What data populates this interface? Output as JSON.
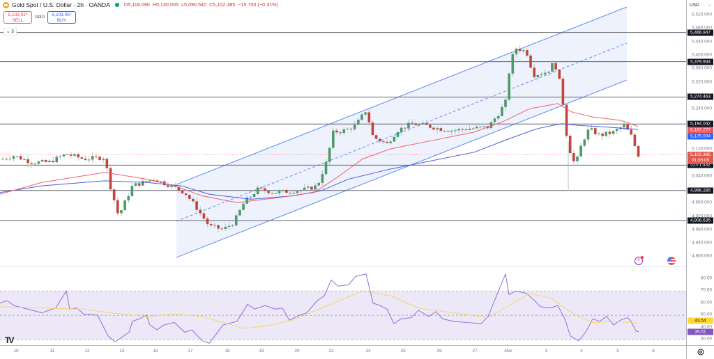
{
  "header": {
    "symbol_title": "Gold Spot / U.S. Dollar · 2h · OANDA",
    "ohlc": {
      "open": "O5,118.090",
      "high": "H5,130.005",
      "low": "L5,090.540",
      "close": "C5,102.385",
      "change": "−15.700 (−0.31%)"
    },
    "market_status_color": "#089981"
  },
  "trade": {
    "sell_price": "5,102.02⁰",
    "sell_label": "SELL",
    "spread": "103.0",
    "buy_price": "5,103.05⁰",
    "buy_label": "BUY"
  },
  "indicators_toggle": "⌄ 3",
  "price_axis": {
    "currency": "USD",
    "ticks": [
      "5,520.000",
      "5,480.000",
      "5,440.000",
      "5,400.000",
      "5,360.000",
      "5,320.000",
      "5,240.000",
      "5,160.000",
      "5,120.000",
      "5,040.000",
      "4,960.000",
      "4,920.000",
      "4,880.000",
      "4,840.000",
      "4,800.000"
    ],
    "tags": {
      "level_1": "5,466.947",
      "level_2": "5,379.934",
      "level_3": "5,274.463",
      "level_4": "5,194.042",
      "ma_fast": "5,187.277",
      "ma_slow": "5,175.004",
      "last_price": "5,102.385",
      "countdown": "01:05:05",
      "level_5": "5,071.432",
      "level_6": "4,996.285",
      "level_7": "4,906.635"
    }
  },
  "rsi_axis": {
    "ticks": [
      "80.00",
      "70.00",
      "60.00",
      "50.00",
      "40.00",
      "30.00"
    ],
    "rsi_ma_value": "43.54",
    "rsi_value": "36.51"
  },
  "time_axis": {
    "labels": [
      "10",
      "11",
      "12",
      "13",
      "15",
      "17",
      "18",
      "19",
      "20",
      "22",
      "24",
      "25",
      "26",
      "27",
      "Mar",
      "3",
      "4",
      "5",
      "6"
    ]
  },
  "colors": {
    "up": "#089981",
    "down": "#f23645",
    "ma_fast": "#f7525f",
    "ma_slow": "#2962ff",
    "channel": "#2962ff",
    "rsi": "#7e57c2",
    "rsi_ma": "#fdd835",
    "last_price": "#f23645"
  },
  "chart_data": {
    "type": "candlestick",
    "title": "Gold Spot / U.S. Dollar · 2h · OANDA",
    "xlabel": "",
    "ylabel": "USD",
    "ylim": [
      4780,
      5540
    ],
    "categories": [
      "10",
      "11",
      "12",
      "13",
      "15",
      "17",
      "18",
      "19",
      "20",
      "22",
      "24",
      "25",
      "26",
      "27",
      "Mar",
      "3",
      "4",
      "5",
      "6"
    ],
    "horizontal_levels": [
      5466.947,
      5379.934,
      5274.463,
      5194.042,
      5071.432,
      4996.285,
      4906.635
    ],
    "moving_averages": [
      {
        "name": "MA fast",
        "last": 5187.277
      },
      {
        "name": "MA slow",
        "last": 5175.004
      }
    ],
    "last": {
      "open": 5118.09,
      "high": 5130.005,
      "low": 5090.54,
      "close": 5102.385,
      "change": -15.7,
      "change_pct": -0.31
    },
    "approx_closes_by_day": {
      "10": 5090,
      "11": 5085,
      "12": 5080,
      "13": 4930,
      "15": 5010,
      "17": 4880,
      "18": 4900,
      "19": 5000,
      "20": 5000,
      "22": 5180,
      "24": 5170,
      "25": 5190,
      "26": 5185,
      "27": 5190,
      "Mar": 5400,
      "3": 5250,
      "4": 5175,
      "5": 5160,
      "6": 5102
    },
    "rsi": {
      "ylim": [
        25,
        85
      ],
      "overbought": 70,
      "middle": 50,
      "oversold": 30,
      "rsi": 36.51,
      "rsi_ma": 43.54
    },
    "channel": {
      "type": "parallel_channel",
      "start_x_label": "17",
      "end_x_label": "4"
    }
  }
}
